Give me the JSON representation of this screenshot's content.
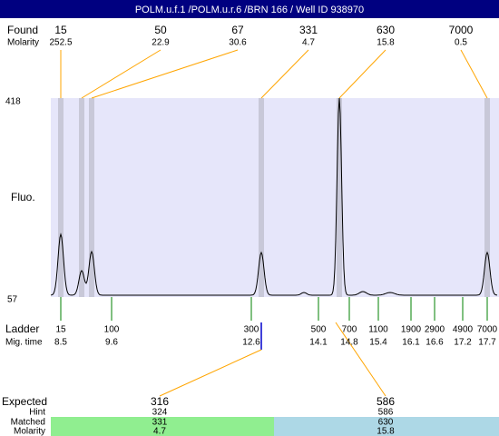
{
  "header": {
    "title": "POLM.u.f.1 /POLM.u.r.6 /BRN 166 / Well ID 938970"
  },
  "found": {
    "label": "Found",
    "molarity_label": "Molarity",
    "peaks": [
      {
        "size": 15,
        "molarity": 252.5
      },
      {
        "size": 50,
        "molarity": 22.9
      },
      {
        "size": 67,
        "molarity": 30.6
      },
      {
        "size": 331,
        "molarity": 4.7
      },
      {
        "size": 630,
        "molarity": 15.8
      },
      {
        "size": 7000,
        "molarity": 0.5
      }
    ]
  },
  "plot": {
    "y_label": "Fluo.",
    "y_top": 418,
    "y_bottom": 57
  },
  "ladder": {
    "label": "Ladder",
    "time_label": "Mig. time",
    "entries": [
      {
        "size": 15,
        "time": 8.5
      },
      {
        "size": 100,
        "time": 9.6
      },
      {
        "size": 300,
        "time": 12.6
      },
      {
        "size": 500,
        "time": 14.1
      },
      {
        "size": 700,
        "time": 14.8
      },
      {
        "size": 1100,
        "time": 15.4
      },
      {
        "size": 1900,
        "time": 16.1
      },
      {
        "size": 2900,
        "time": 16.6
      },
      {
        "size": 4900,
        "time": 17.2
      },
      {
        "size": 7000,
        "time": 17.7
      }
    ]
  },
  "expected": {
    "label": "Expected",
    "hint_label": "Hint",
    "matched_label": "Matched",
    "molarity_label": "Molarity",
    "entries": [
      {
        "expected": 316,
        "hint": 324,
        "matched": 331,
        "molarity": 4.7
      },
      {
        "expected": 586,
        "hint": 586,
        "matched": 630,
        "molarity": 15.8
      }
    ]
  }
}
